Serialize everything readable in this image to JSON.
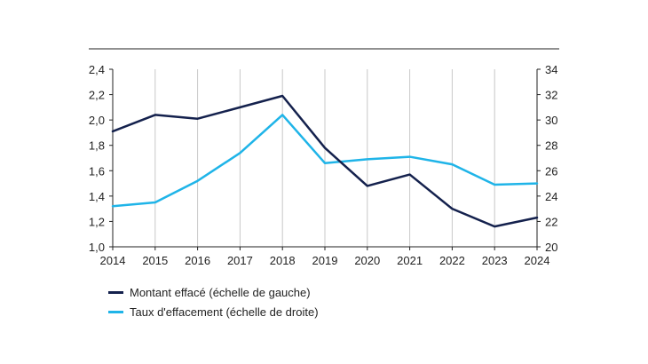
{
  "chart_data": {
    "type": "line",
    "x": [
      "2014",
      "2015",
      "2016",
      "2017",
      "2018",
      "2019",
      "2020",
      "2021",
      "2022",
      "2023",
      "2024"
    ],
    "series": [
      {
        "name": "Montant effacé (échelle de gauche)",
        "axis": "left",
        "color": "#14214d",
        "values": [
          1.91,
          2.04,
          2.01,
          2.1,
          2.19,
          1.78,
          1.48,
          1.57,
          1.3,
          1.16,
          1.23
        ]
      },
      {
        "name": "Taux d'effacement (échelle de droite)",
        "axis": "right",
        "color": "#1fb4e8",
        "values": [
          23.2,
          23.5,
          25.2,
          27.4,
          30.4,
          26.6,
          26.9,
          27.1,
          26.5,
          24.9,
          25.0
        ]
      }
    ],
    "ylim_left": [
      1.0,
      2.4
    ],
    "ylim_right": [
      20,
      34
    ],
    "yticks_left": [
      "1,0",
      "1,2",
      "1,4",
      "1,6",
      "1,8",
      "2,0",
      "2,2",
      "2,4"
    ],
    "yticks_right": [
      "20",
      "22",
      "24",
      "26",
      "28",
      "30",
      "32",
      "34"
    ],
    "grid": "vertical",
    "legend_position": "bottom-left"
  }
}
